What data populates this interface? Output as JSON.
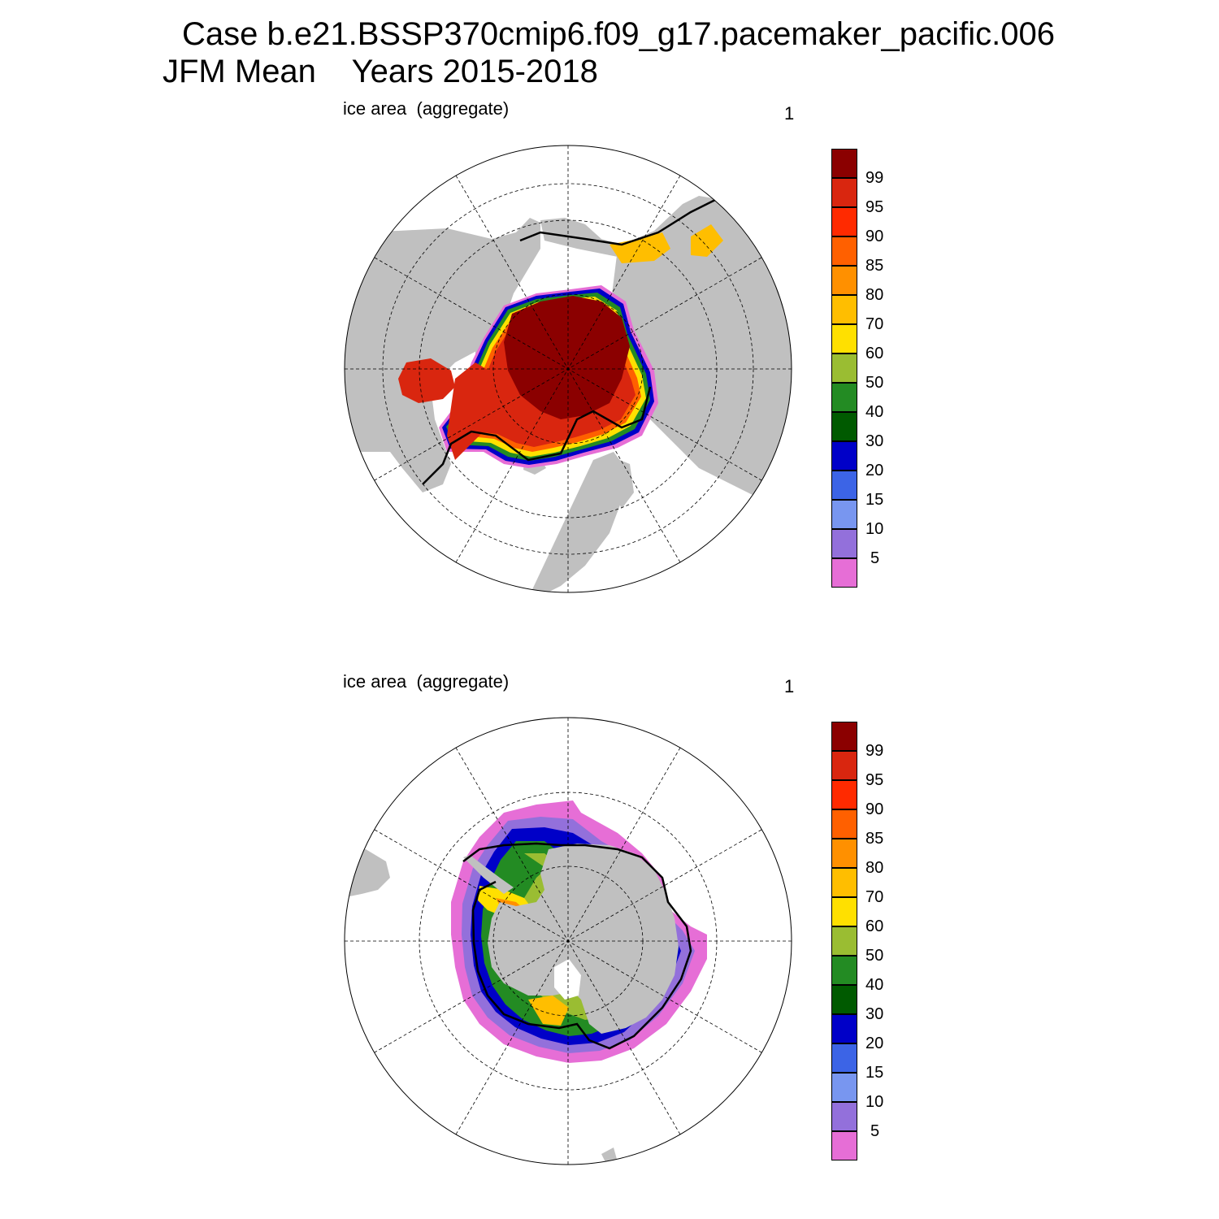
{
  "header": {
    "line1": "Case b.e21.BSSP370cmip6.f09_g17.pacemaker_pacific.006",
    "line2": "JFM Mean    Years 2015-2018"
  },
  "panels": [
    {
      "id": "north",
      "label": "ice area  (aggregate)",
      "number": "1",
      "hemisphere": "Arctic"
    },
    {
      "id": "south",
      "label": "ice area  (aggregate)",
      "number": "1",
      "hemisphere": "Antarctic"
    }
  ],
  "legend": {
    "labels": [
      "99",
      "95",
      "90",
      "85",
      "80",
      "70",
      "60",
      "50",
      "40",
      "30",
      "20",
      "15",
      "10",
      "5"
    ],
    "colors": [
      "#8b0000",
      "#d9260f",
      "#ff2a00",
      "#ff6000",
      "#ff9000",
      "#ffbe00",
      "#ffe000",
      "#9abd32",
      "#238b23",
      "#005a00",
      "#0000c8",
      "#3c64e6",
      "#7896f0",
      "#9370db",
      "#e66ed6"
    ]
  },
  "colors": {
    "land": "#c0c0c0",
    "ocean": "#ffffff",
    "contour": "#000000"
  }
}
